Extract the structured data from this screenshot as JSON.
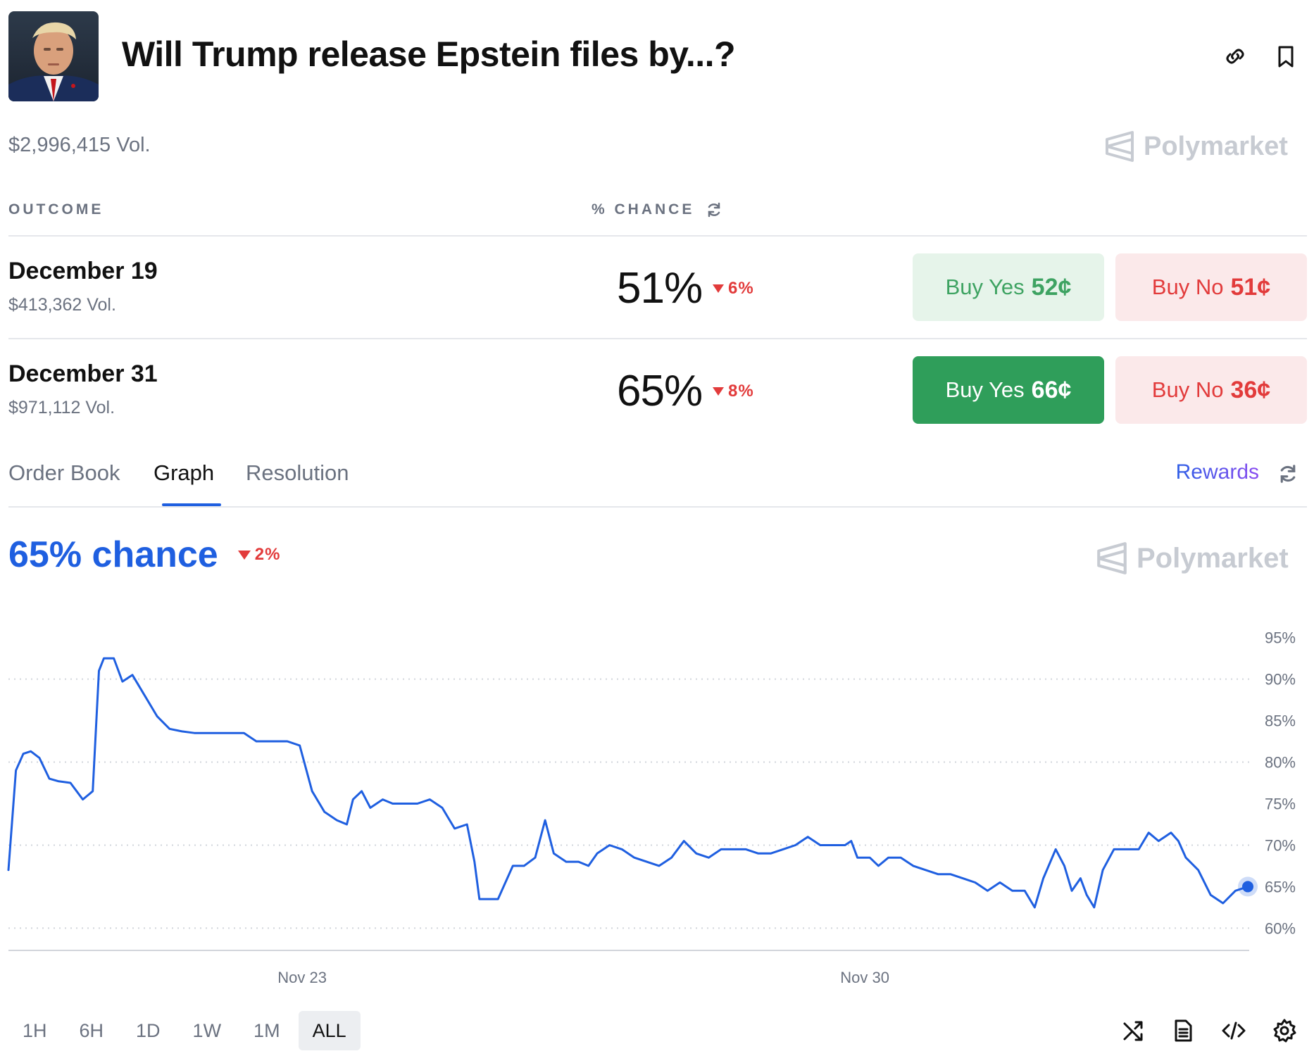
{
  "header": {
    "title": "Will Trump release Epstein files by...?",
    "avatar_alt": "portrait",
    "link_icon": "link-icon",
    "bookmark_icon": "bookmark-icon"
  },
  "market": {
    "volume": "$2,996,415 Vol.",
    "brand": "Polymarket"
  },
  "columns": {
    "outcome": "OUTCOME",
    "chance": "% CHANCE"
  },
  "outcomes": [
    {
      "name": "December 19",
      "volume": "$413,362 Vol.",
      "chance": "51%",
      "delta": "6%",
      "buy_yes_label": "Buy Yes",
      "buy_yes_price": "52¢",
      "buy_no_label": "Buy No",
      "buy_no_price": "51¢"
    },
    {
      "name": "December 31",
      "volume": "$971,112 Vol.",
      "chance": "65%",
      "delta": "8%",
      "buy_yes_label": "Buy Yes",
      "buy_yes_price": "66¢",
      "buy_no_label": "Buy No",
      "buy_no_price": "36¢"
    }
  ],
  "tabs": {
    "items": [
      "Order Book",
      "Graph",
      "Resolution"
    ],
    "active": "Graph",
    "rewards": "Rewards"
  },
  "graph": {
    "chance_label": "65% chance",
    "delta": "2%",
    "brand": "Polymarket"
  },
  "ranges": {
    "items": [
      "1H",
      "6H",
      "1D",
      "1W",
      "1M",
      "ALL"
    ],
    "active": "ALL"
  },
  "colors": {
    "line": "#1f5fe0",
    "yes": "#2f9e5a",
    "no": "#e23b3b"
  },
  "chart_data": {
    "type": "line",
    "title": "65% chance",
    "xlabel": "",
    "ylabel": "",
    "x_tick_labels": [
      "Nov 23",
      "Nov 30"
    ],
    "y_tick_labels": [
      "95%",
      "90%",
      "85%",
      "80%",
      "75%",
      "70%",
      "65%",
      "60%"
    ],
    "y_ticks": [
      95,
      90,
      85,
      80,
      75,
      70,
      65,
      60
    ],
    "ylim": [
      58,
      97
    ],
    "xlim": [
      0,
      100
    ],
    "x_ticks": [
      23.7,
      69.1
    ],
    "gridlines": [
      90,
      80,
      70,
      60
    ],
    "series": [
      {
        "name": "December 31",
        "points": [
          [
            0,
            67
          ],
          [
            0.6,
            79
          ],
          [
            1.2,
            81
          ],
          [
            1.8,
            81.3
          ],
          [
            2.5,
            80.5
          ],
          [
            3.3,
            78
          ],
          [
            4,
            77.7
          ],
          [
            5,
            77.5
          ],
          [
            5.5,
            76.5
          ],
          [
            6,
            75.5
          ],
          [
            6.8,
            76.5
          ],
          [
            7.3,
            91
          ],
          [
            7.7,
            92.5
          ],
          [
            8.5,
            92.5
          ],
          [
            9.2,
            89.7
          ],
          [
            10,
            90.5
          ],
          [
            11,
            88
          ],
          [
            12,
            85.5
          ],
          [
            13,
            84
          ],
          [
            14,
            83.7
          ],
          [
            15,
            83.5
          ],
          [
            16,
            83.5
          ],
          [
            17,
            83.5
          ],
          [
            18,
            83.5
          ],
          [
            19,
            83.5
          ],
          [
            20,
            82.5
          ],
          [
            21,
            82.5
          ],
          [
            22.5,
            82.5
          ],
          [
            23.5,
            82
          ],
          [
            24.5,
            76.5
          ],
          [
            25.5,
            74
          ],
          [
            26.5,
            73
          ],
          [
            27.3,
            72.5
          ],
          [
            27.8,
            75.5
          ],
          [
            28.5,
            76.5
          ],
          [
            29.2,
            74.5
          ],
          [
            30.2,
            75.5
          ],
          [
            31,
            75
          ],
          [
            32,
            75
          ],
          [
            33,
            75
          ],
          [
            34,
            75.5
          ],
          [
            35,
            74.5
          ],
          [
            36,
            72
          ],
          [
            37,
            72.5
          ],
          [
            37.6,
            68
          ],
          [
            38,
            63.5
          ],
          [
            39.5,
            63.5
          ],
          [
            40.7,
            67.5
          ],
          [
            41.6,
            67.5
          ],
          [
            42.5,
            68.5
          ],
          [
            43.3,
            73
          ],
          [
            44,
            69
          ],
          [
            45,
            68
          ],
          [
            46,
            68
          ],
          [
            46.8,
            67.5
          ],
          [
            47.5,
            69
          ],
          [
            48.5,
            70
          ],
          [
            49.5,
            69.5
          ],
          [
            50.5,
            68.5
          ],
          [
            51.5,
            68
          ],
          [
            52.5,
            67.5
          ],
          [
            53.5,
            68.5
          ],
          [
            54.5,
            70.5
          ],
          [
            55.5,
            69
          ],
          [
            56.5,
            68.5
          ],
          [
            57.5,
            69.5
          ],
          [
            58.5,
            69.5
          ],
          [
            59.5,
            69.5
          ],
          [
            60.5,
            69
          ],
          [
            61.5,
            69
          ],
          [
            62.5,
            69.5
          ],
          [
            63.5,
            70
          ],
          [
            64.5,
            71
          ],
          [
            65.5,
            70
          ],
          [
            66.5,
            70
          ],
          [
            67.5,
            70
          ],
          [
            68,
            70.5
          ],
          [
            68.5,
            68.5
          ],
          [
            69.5,
            68.5
          ],
          [
            70.2,
            67.5
          ],
          [
            71,
            68.5
          ],
          [
            72,
            68.5
          ],
          [
            73,
            67.5
          ],
          [
            74,
            67
          ],
          [
            75,
            66.5
          ],
          [
            76,
            66.5
          ],
          [
            77,
            66
          ],
          [
            78,
            65.5
          ],
          [
            79,
            64.5
          ],
          [
            80,
            65.5
          ],
          [
            81,
            64.5
          ],
          [
            82,
            64.5
          ],
          [
            82.8,
            62.5
          ],
          [
            83.5,
            66
          ],
          [
            84.5,
            69.5
          ],
          [
            85.2,
            67.5
          ],
          [
            85.8,
            64.5
          ],
          [
            86.5,
            66
          ],
          [
            87,
            64
          ],
          [
            87.6,
            62.5
          ],
          [
            88.3,
            67
          ],
          [
            89.2,
            69.5
          ],
          [
            90.2,
            69.5
          ],
          [
            91.2,
            69.5
          ],
          [
            92,
            71.5
          ],
          [
            92.8,
            70.5
          ],
          [
            93.8,
            71.5
          ],
          [
            94.4,
            70.5
          ],
          [
            95,
            68.5
          ],
          [
            96,
            67
          ],
          [
            97,
            64
          ],
          [
            98,
            63
          ],
          [
            99,
            64.5
          ],
          [
            100,
            65
          ]
        ]
      }
    ]
  }
}
